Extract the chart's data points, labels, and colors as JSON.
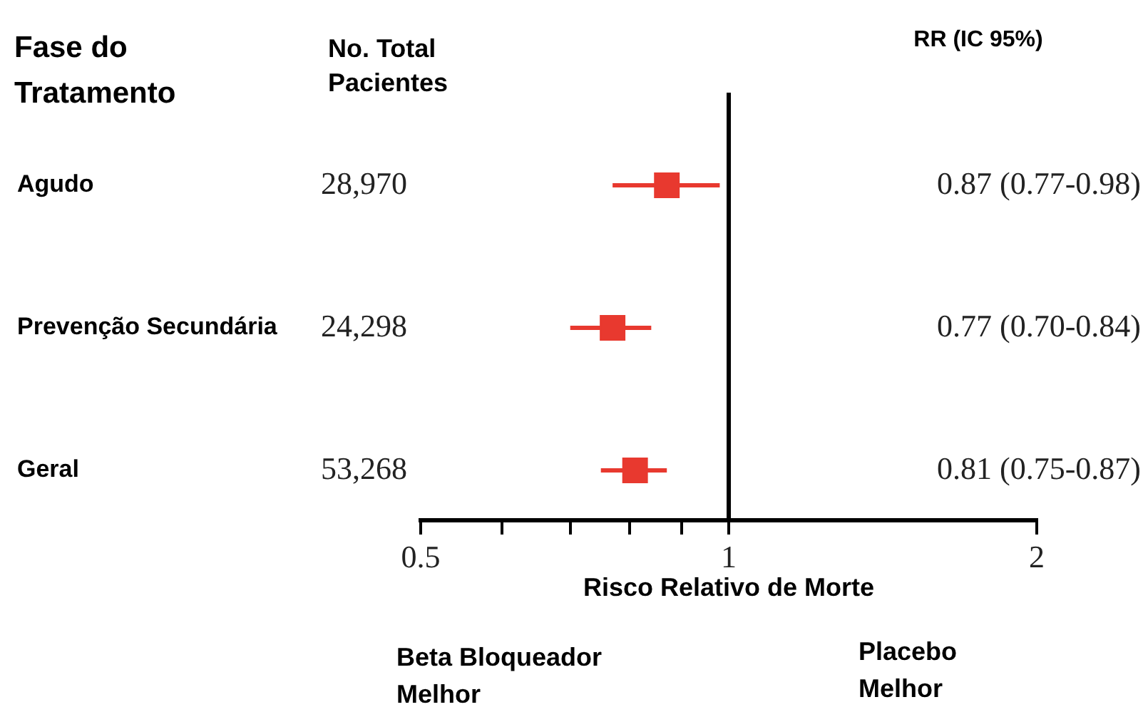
{
  "chart_data": {
    "type": "scatter",
    "orientation": "horizontal",
    "marker": "square",
    "xlabel": "Risco Relativo de Morte",
    "categories": [
      "Agudo",
      "Prevenção Secundária",
      "Geral"
    ],
    "series": [
      {
        "color": "#e8392f",
        "values": [
          0.87,
          0.77,
          0.81
        ],
        "errors": [
          [
            0.77,
            0.98
          ],
          [
            0.7,
            0.84
          ],
          [
            0.75,
            0.87
          ]
        ]
      }
    ],
    "log": "x",
    "xlim": [
      0.5,
      2
    ],
    "xticks": [
      0.5,
      {
        "value": 0.6,
        "label": null
      },
      {
        "value": 0.7,
        "label": null
      },
      {
        "value": 0.8,
        "label": null
      },
      {
        "value": 0.9,
        "label": null
      },
      1,
      2
    ],
    "ref_lines": [
      {
        "axis": "x",
        "value": 1,
        "color": "#000000"
      }
    ],
    "annotations": [
      "Fase do\nTratamento",
      "No. Total\nPacientes",
      "RR (IC 95%)",
      "28,970",
      "24,298",
      "53,268",
      "0.87 (0.77-0.98)",
      "0.77 (0.70-0.84)",
      "0.81 (0.75-0.87)",
      "Beta Bloqueador\nMelhor",
      "Placebo\nMelhor"
    ],
    "grid": false,
    "legend": false
  }
}
